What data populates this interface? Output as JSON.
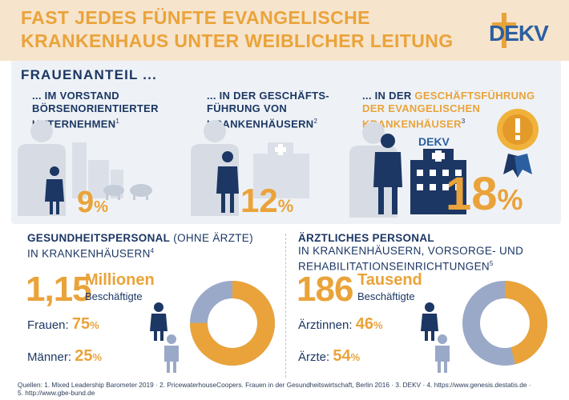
{
  "header": {
    "title_line1": "FAST JEDES FÜNFTE EVANGELISCHE",
    "title_line2": "KRANKENHAUS UNTER WEIBLICHER LEITUNG",
    "logo_text": "DEKV",
    "brand_color": "#eaa33a",
    "navy": "#1c3764"
  },
  "section_heading": "FRAUENANTEIL ...",
  "stats": [
    {
      "label_line1": "... IM ",
      "label_line1_b": "VORSTAND",
      "label_line2": "BÖRSENORIENTIERTER",
      "label_line3": "UNTERNEHMEN",
      "footnote": "1",
      "value": "9",
      "percent": "%"
    },
    {
      "label_line1": "... IN DER ",
      "label_line1_b": "GESCHÄFTS-",
      "label_line2": "FÜHRUNG VON",
      "label_line3": "KRANKENHÄUSERN",
      "footnote": "2",
      "value": "12",
      "percent": "%"
    },
    {
      "label_line1": "... IN DER ",
      "label_line1_b": "GESCHÄFTSFÜHRUNG",
      "label_line2": "DER EVANGELISCHEN",
      "label_line3": "KRANKENHÄUSER",
      "footnote": "3",
      "value": "18",
      "percent": "%",
      "hospital_logo": "DEKV"
    }
  ],
  "health_staff": {
    "title_bold": "GESUNDHEITSPERSONAL",
    "title_rest": " (OHNE ÄRZTE)",
    "title_line2": "IN KRANKENHÄUSERN",
    "footnote": "4",
    "big_number": "1,15",
    "big_unit": "Millionen",
    "big_sub": "Beschäftigte",
    "female_label": "Frauen:",
    "female_value": "75",
    "male_label": "Männer:",
    "male_value": "25",
    "percent": "%",
    "female_share": 75
  },
  "medical_staff": {
    "title_bold": "ÄRZTLICHES PERSONAL",
    "title_line2": "IN KRANKENHÄUSERN, VORSORGE- UND",
    "title_line3": "REHABILITATIONSEINRICHTUNGEN",
    "footnote": "5",
    "big_number": "186",
    "big_unit": "Tausend",
    "big_sub": "Beschäftigte",
    "female_label": "Ärztinnen:",
    "female_value": "46",
    "male_label": "Ärzte:",
    "male_value": "54",
    "percent": "%",
    "female_share": 46
  },
  "sources_line1": "Quellen: 1. Mixed Leadership Barometer 2019 · 2. PricewaterhouseCoopers. Frauen in der Gesundheitswirtschaft, Berlin 2016 · 3. DEKV · 4. https://www.genesis.destatis.de ·",
  "sources_line2": "5. http://www.gbe-bund.de",
  "colors": {
    "donut_female": "#eaa33a",
    "donut_male": "#9aa9c8",
    "figure_grey": "#d7dce4",
    "medal_gold": "#f0b23a"
  }
}
